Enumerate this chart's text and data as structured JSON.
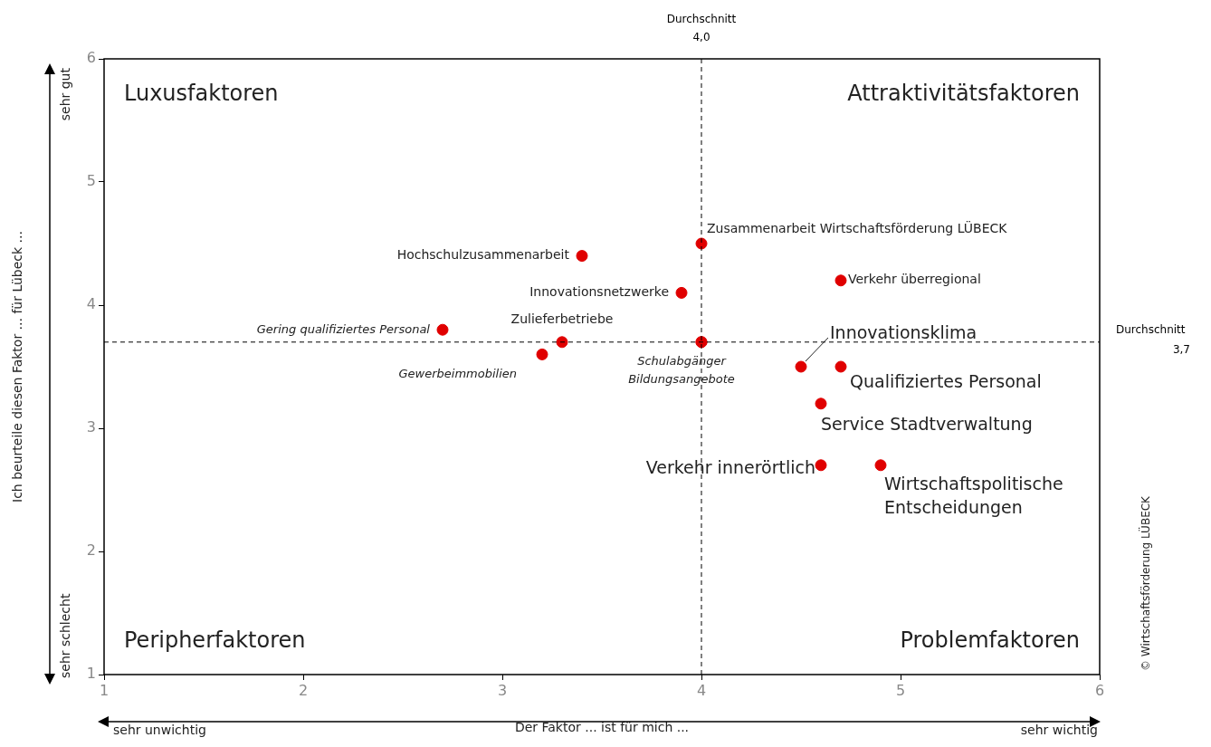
{
  "chart_data": {
    "type": "scatter",
    "xlabel": "Der Faktor ... ist für mich ...",
    "ylabel": "Ich beurteile diesen Faktor ... für Lübeck ...",
    "x": [
      3.4,
      4.0,
      3.9,
      4.7,
      2.7,
      3.3,
      3.2,
      4.0,
      4.0,
      4.5,
      4.7,
      4.6,
      4.6,
      4.9
    ],
    "values": [
      4.4,
      4.5,
      4.1,
      4.2,
      3.8,
      3.7,
      3.6,
      3.7,
      3.7,
      3.5,
      3.5,
      3.2,
      2.7,
      2.7
    ],
    "color": "#e00000",
    "marker": "circle",
    "legend": false,
    "grid": false,
    "xlim": [
      1,
      6
    ],
    "xticks": [
      1,
      2,
      3,
      4,
      5,
      6
    ],
    "ylim": [
      1,
      6
    ],
    "yticks": [
      1,
      2,
      3,
      4,
      5,
      6
    ],
    "ref_lines": [
      {
        "axis": "x",
        "value": 4.0,
        "label": "Durchschnitt 4,0",
        "line_style": "dashed",
        "color": "#000000"
      },
      {
        "axis": "y",
        "value": 3.7,
        "label": "Durchschnitt 3,7",
        "line_style": "dashed",
        "color": "#000000"
      }
    ],
    "annotations": [
      {
        "text": "Hochschulzusammenarbeit",
        "x": 3.4,
        "y": 4.4
      },
      {
        "text": "Zusammenarbeit Wirtschaftsförderung LÜBECK",
        "x": 4.0,
        "y": 4.5
      },
      {
        "text": "Innovationsnetzwerke",
        "x": 3.9,
        "y": 4.1
      },
      {
        "text": "Verkehr überregional",
        "x": 4.7,
        "y": 4.2
      },
      {
        "text": "Gering qualifiziertes Personal",
        "x": 2.7,
        "y": 3.8
      },
      {
        "text": "Zulieferbetriebe",
        "x": 3.3,
        "y": 3.7
      },
      {
        "text": "Gewerbeimmobilien",
        "x": 3.2,
        "y": 3.6
      },
      {
        "text": "Schulabgänger",
        "x": 4.0,
        "y": 3.7
      },
      {
        "text": "Bildungsangebote",
        "x": 4.0,
        "y": 3.7
      },
      {
        "text": "Innovationsklima",
        "x": 4.5,
        "y": 3.5
      },
      {
        "text": "Qualifiziertes Personal",
        "x": 4.7,
        "y": 3.5
      },
      {
        "text": "Service Stadtverwaltung",
        "x": 4.6,
        "y": 3.2
      },
      {
        "text": "Verkehr innerörtlich",
        "x": 4.6,
        "y": 2.7
      },
      {
        "text": "Wirtschaftspolitische Entscheidungen",
        "x": 4.9,
        "y": 2.7
      },
      "Luxusfaktoren",
      "Attraktivitätsfaktoren",
      "Peripherfaktoren",
      "Problemfaktoren",
      "sehr gut",
      "sehr schlecht",
      "sehr unwichtig",
      "sehr wichtig",
      "© Wirtschaftsförderung LÜBECK"
    ]
  }
}
